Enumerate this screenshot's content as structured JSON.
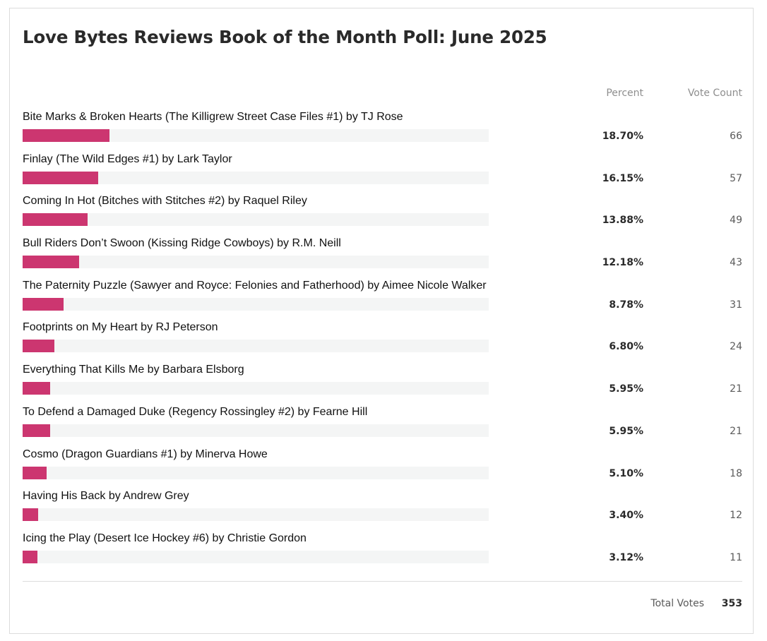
{
  "poll": {
    "title": "Love Bytes Reviews Book of the Month Poll: June 2025",
    "headers": {
      "percent": "Percent",
      "votes": "Vote Count"
    },
    "accent_color": "#cc3670",
    "answers": [
      {
        "label": "Bite Marks & Broken Hearts (The Killigrew Street Case Files #1) by TJ Rose",
        "percent": "18.70%",
        "share": 18.7,
        "votes": "66"
      },
      {
        "label": "Finlay (The Wild Edges #1) by Lark Taylor",
        "percent": "16.15%",
        "share": 16.15,
        "votes": "57"
      },
      {
        "label": "Coming In Hot (Bitches with Stitches #2) by Raquel Riley",
        "percent": "13.88%",
        "share": 13.88,
        "votes": "49"
      },
      {
        "label": "Bull Riders Don’t Swoon (Kissing Ridge Cowboys) by R.M. Neill",
        "percent": "12.18%",
        "share": 12.18,
        "votes": "43"
      },
      {
        "label": "The Paternity Puzzle (Sawyer and Royce: Felonies and Fatherhood) by Aimee Nicole Walker",
        "percent": "8.78%",
        "share": 8.78,
        "votes": "31"
      },
      {
        "label": "Footprints on My Heart by RJ Peterson",
        "percent": "6.80%",
        "share": 6.8,
        "votes": "24"
      },
      {
        "label": "Everything That Kills Me by Barbara Elsborg",
        "percent": "5.95%",
        "share": 5.95,
        "votes": "21"
      },
      {
        "label": "To Defend a Damaged Duke (Regency Rossingley #2) by Fearne Hill",
        "percent": "5.95%",
        "share": 5.95,
        "votes": "21"
      },
      {
        "label": "Cosmo (Dragon Guardians #1) by Minerva Howe",
        "percent": "5.10%",
        "share": 5.1,
        "votes": "18"
      },
      {
        "label": "Having His Back by Andrew Grey",
        "percent": "3.40%",
        "share": 3.4,
        "votes": "12"
      },
      {
        "label": "Icing the Play (Desert Ice Hockey #6) by Christie Gordon",
        "percent": "3.12%",
        "share": 3.12,
        "votes": "11"
      }
    ],
    "footer": {
      "total_label": "Total Votes",
      "total_value": "353"
    }
  }
}
